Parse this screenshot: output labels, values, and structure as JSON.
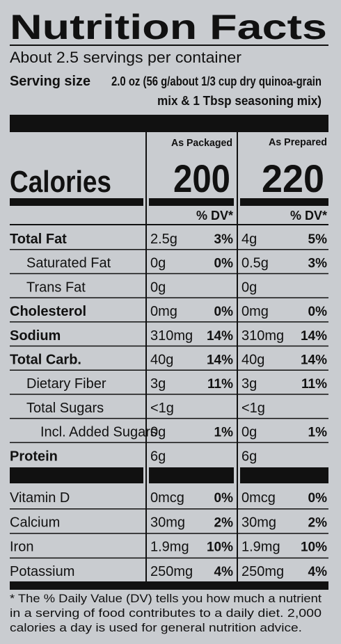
{
  "title": "Nutrition Facts",
  "servings": "About 2.5 servings per container",
  "serving_size": {
    "label": "Serving size",
    "lines": [
      "2.0 oz (56 g/about 1/3 cup dry quinoa-grain",
      "mix & 1 Tbsp seasoning mix)"
    ]
  },
  "columns": [
    "As Packaged",
    "As Prepared"
  ],
  "calories": {
    "label": "Calories",
    "values": [
      "200",
      "220"
    ]
  },
  "dv_header": "% DV*",
  "nutrients": [
    {
      "name": "Total Fat",
      "packaged": {
        "amount": "2.5g",
        "dv": "3%"
      },
      "prepared": {
        "amount": "4g",
        "dv": "5%"
      }
    },
    {
      "name": "Saturated Fat",
      "packaged": {
        "amount": "0g",
        "dv": "0%"
      },
      "prepared": {
        "amount": "0.5g",
        "dv": "3%"
      }
    },
    {
      "name": "Trans Fat",
      "packaged": {
        "amount": "0g"
      },
      "prepared": {
        "amount": "0g"
      }
    },
    {
      "name": "Cholesterol",
      "packaged": {
        "amount": "0mg",
        "dv": "0%"
      },
      "prepared": {
        "amount": "0mg",
        "dv": "0%"
      }
    },
    {
      "name": "Sodium",
      "packaged": {
        "amount": "310mg",
        "dv": "14%"
      },
      "prepared": {
        "amount": "310mg",
        "dv": "14%"
      }
    },
    {
      "name": "Total Carb.",
      "packaged": {
        "amount": "40g",
        "dv": "14%"
      },
      "prepared": {
        "amount": "40g",
        "dv": "14%"
      }
    },
    {
      "name": "Dietary Fiber",
      "packaged": {
        "amount": "3g",
        "dv": "11%"
      },
      "prepared": {
        "amount": "3g",
        "dv": "11%"
      }
    },
    {
      "name": "Total Sugars",
      "packaged": {
        "amount": "<1g"
      },
      "prepared": {
        "amount": "<1g"
      }
    },
    {
      "name": "Incl. Added Sugars",
      "packaged": {
        "amount": "0g",
        "dv": "1%"
      },
      "prepared": {
        "amount": "0g",
        "dv": "1%"
      }
    },
    {
      "name": "Protein",
      "packaged": {
        "amount": "6g"
      },
      "prepared": {
        "amount": "6g"
      }
    }
  ],
  "vitamins": [
    {
      "name": "Vitamin D",
      "packaged": {
        "amount": "0mcg",
        "dv": "0%"
      },
      "prepared": {
        "amount": "0mcg",
        "dv": "0%"
      }
    },
    {
      "name": "Calcium",
      "packaged": {
        "amount": "30mg",
        "dv": "2%"
      },
      "prepared": {
        "amount": "30mg",
        "dv": "2%"
      }
    },
    {
      "name": "Iron",
      "packaged": {
        "amount": "1.9mg",
        "dv": "10%"
      },
      "prepared": {
        "amount": "1.9mg",
        "dv": "10%"
      }
    },
    {
      "name": "Potassium",
      "packaged": {
        "amount": "250mg",
        "dv": "4%"
      },
      "prepared": {
        "amount": "250mg",
        "dv": "4%"
      }
    }
  ],
  "footnote": [
    "* The % Daily Value (DV) tells you how much a nutrient",
    "in a serving of food contributes to a daily diet. 2,000",
    "calories a day is used for general nutrition advice."
  ]
}
